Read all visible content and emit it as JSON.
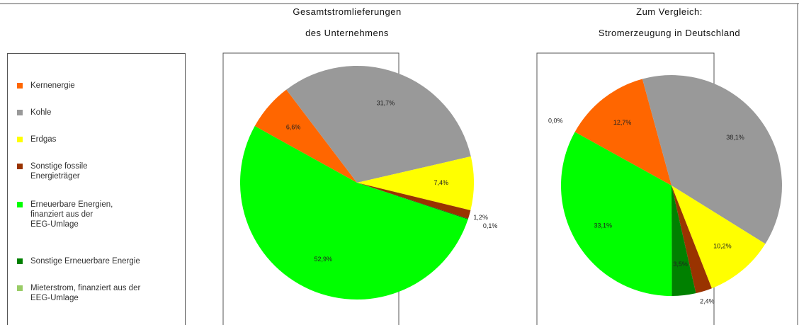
{
  "chart_data": [
    {
      "type": "pie",
      "title": "Gesamtstromlieferungen\ndes Unternehmens",
      "categories": [
        "Kernenergie",
        "Kohle",
        "Erdgas",
        "Sonstige fossile\nEnergieträger",
        "Sonstige Erneuerbare Energie",
        "Erneuerbare Energien,\nfinanziert aus der\nEEG-Umlage",
        "Mieterstrom, finanziert aus der\nEEG-Umlage"
      ],
      "colors": [
        "#ff6600",
        "#999999",
        "#ffff00",
        "#993300",
        "#008000",
        "#00ff00",
        "#99cc66"
      ],
      "values": [
        6.6,
        31.7,
        7.4,
        1.2,
        0.1,
        52.9,
        null
      ],
      "value_labels": [
        "6,6%",
        "31,7%",
        "7,4%",
        "1,2%",
        "0,1%",
        "52,9%",
        null
      ]
    },
    {
      "type": "pie",
      "title": "Zum Vergleich:\nStromerzeugung in Deutschland",
      "categories": [
        "Kernenergie",
        "Kohle",
        "Erdgas",
        "Sonstige fossile\nEnergieträger",
        "Sonstige Erneuerbare Energie",
        "Erneuerbare Energien,\nfinanziert aus der\nEEG-Umlage",
        "Mieterstrom, finanziert aus der\nEEG-Umlage"
      ],
      "colors": [
        "#ff6600",
        "#999999",
        "#ffff00",
        "#993300",
        "#008000",
        "#00ff00",
        "#99cc66"
      ],
      "values": [
        12.7,
        38.1,
        10.2,
        2.4,
        3.5,
        33.1,
        0.0
      ],
      "value_labels": [
        "12,7%",
        "38,1%",
        "10,2%",
        "2,4%",
        "3,5%",
        "33,1%",
        "0,0%"
      ]
    }
  ]
}
